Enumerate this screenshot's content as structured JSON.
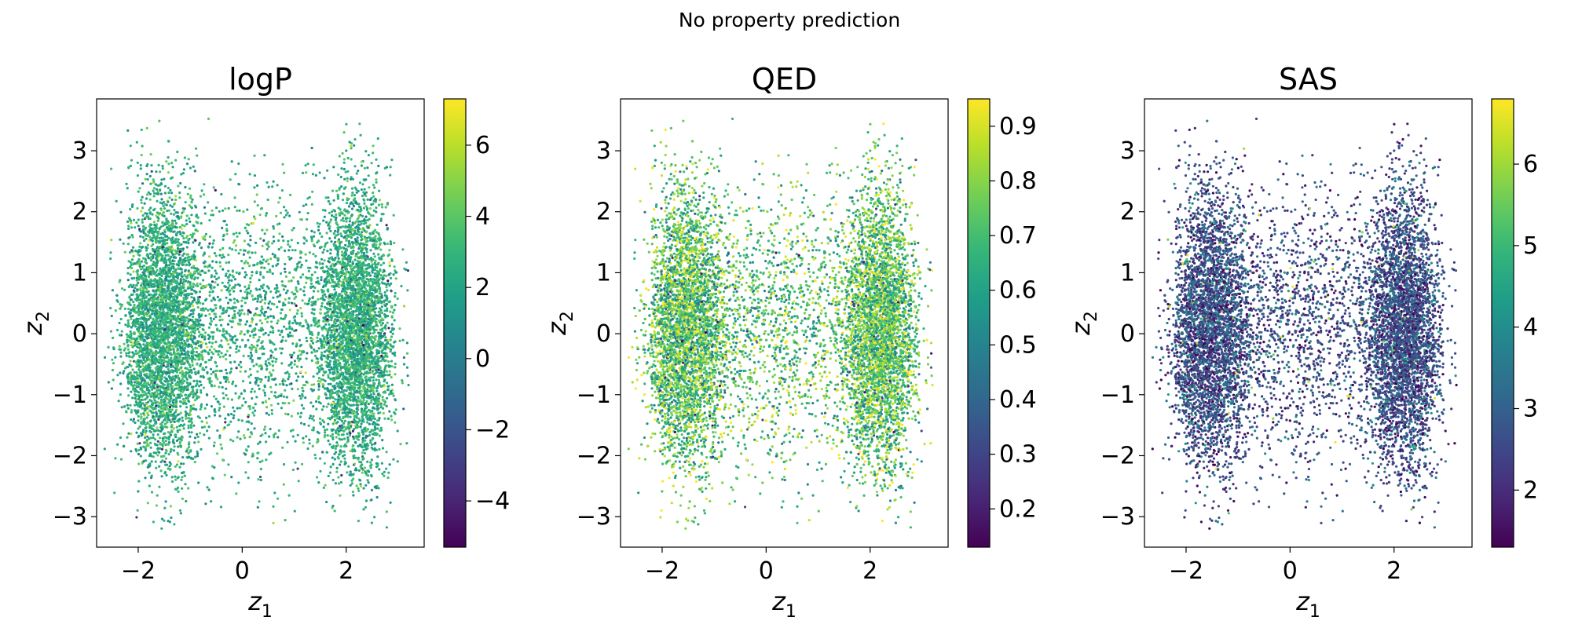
{
  "figure": {
    "suptitle": "No property prediction"
  },
  "chart_data": [
    {
      "type": "scatter",
      "title": "logP",
      "xlabel": {
        "base": "z",
        "sub": "1"
      },
      "ylabel": {
        "base": "z",
        "sub": "2"
      },
      "xlim": [
        -2.8,
        3.5
      ],
      "ylim": [
        -3.5,
        3.85
      ],
      "xticks": [
        -2,
        0,
        2
      ],
      "yticks": [
        -3,
        -2,
        -1,
        0,
        1,
        2,
        3
      ],
      "colormap": "viridis",
      "color_range": [
        -5.3,
        7.3
      ],
      "colorbar_ticks": [
        -4,
        -2,
        0,
        2,
        4,
        6
      ],
      "color_distribution": {
        "center": 2.6,
        "spread": 1.1
      },
      "n_points": 9000,
      "grid": false
    },
    {
      "type": "scatter",
      "title": "QED",
      "xlabel": {
        "base": "z",
        "sub": "1"
      },
      "ylabel": {
        "base": "z",
        "sub": "2"
      },
      "xlim": [
        -2.8,
        3.5
      ],
      "ylim": [
        -3.5,
        3.85
      ],
      "xticks": [
        -2,
        0,
        2
      ],
      "yticks": [
        -3,
        -2,
        -1,
        0,
        1,
        2,
        3
      ],
      "colormap": "viridis",
      "color_range": [
        0.13,
        0.95
      ],
      "colorbar_ticks": [
        0.2,
        0.3,
        0.4,
        0.5,
        0.6,
        0.7,
        0.8,
        0.9
      ],
      "color_distribution": {
        "center": 0.72,
        "spread": 0.14
      },
      "n_points": 9000,
      "grid": false
    },
    {
      "type": "scatter",
      "title": "SAS",
      "xlabel": {
        "base": "z",
        "sub": "1"
      },
      "ylabel": {
        "base": "z",
        "sub": "2"
      },
      "xlim": [
        -2.8,
        3.5
      ],
      "ylim": [
        -3.5,
        3.85
      ],
      "xticks": [
        -2,
        0,
        2
      ],
      "yticks": [
        -3,
        -2,
        -1,
        0,
        1,
        2,
        3
      ],
      "colormap": "viridis",
      "color_range": [
        1.3,
        6.8
      ],
      "colorbar_ticks": [
        2,
        3,
        4,
        5,
        6
      ],
      "color_distribution": {
        "center": 2.6,
        "spread": 0.7
      },
      "n_points": 9000,
      "grid": false
    }
  ]
}
